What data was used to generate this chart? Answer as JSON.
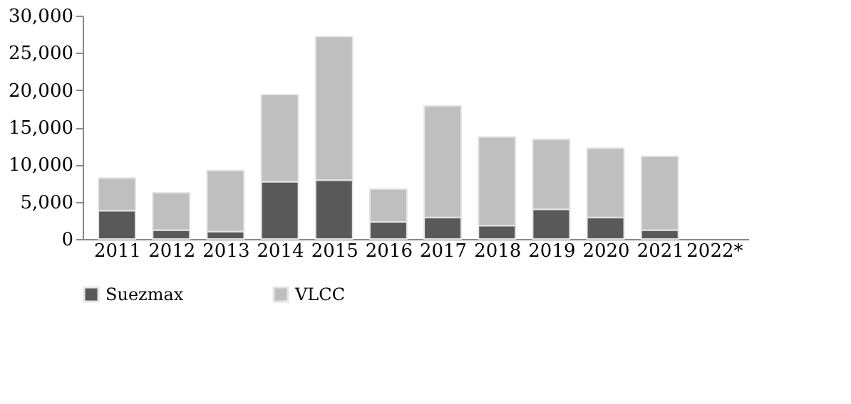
{
  "chart_data": {
    "type": "bar",
    "stacked": true,
    "categories": [
      "2011",
      "2012",
      "2013",
      "2014",
      "2015",
      "2016",
      "2017",
      "2018",
      "2019",
      "2020",
      "2021",
      "2022*"
    ],
    "series": [
      {
        "name": "Suezmax",
        "color": "#595959",
        "values": [
          3800,
          1200,
          1000,
          7700,
          7900,
          2300,
          2900,
          1800,
          4000,
          2900,
          1200,
          null
        ]
      },
      {
        "name": "VLCC",
        "color": "#bfbfbf",
        "values": [
          4400,
          5000,
          8200,
          11700,
          19300,
          4400,
          15000,
          11900,
          9400,
          9300,
          9900,
          null
        ]
      }
    ],
    "ylim": [
      0,
      30000
    ],
    "yticks": [
      0,
      {
        "value": 5000,
        "label": "5,000"
      },
      {
        "value": 10000,
        "label": "10,000"
      },
      {
        "value": 15000,
        "label": "15,000"
      },
      {
        "value": 20000,
        "label": "20,000"
      },
      {
        "value": 25000,
        "label": "25,000"
      },
      {
        "value": 30000,
        "label": "30,000"
      }
    ],
    "grid": false,
    "legend": "bottom"
  }
}
